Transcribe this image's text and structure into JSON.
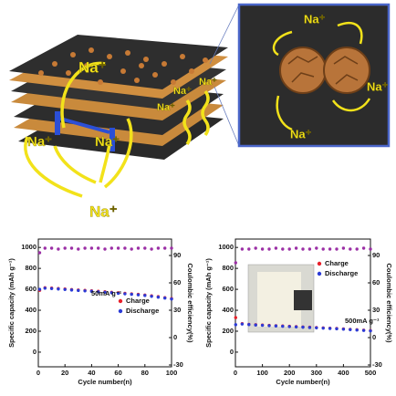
{
  "illustration": {
    "labels": [
      "Na⁺",
      "Na⁺",
      "Na⁺",
      "Na⁺",
      "Na⁺",
      "Na⁺",
      "Na⁺",
      "Na⁺",
      "Na⁺",
      "Na⁺"
    ]
  },
  "chart_data": [
    {
      "type": "scatter",
      "xlabel": "Cycle number(n)",
      "ylabel": "Specific capacity (mAh g⁻¹)",
      "y2label": "Coulombic efficiency(%)",
      "annotation": "50mA g⁻¹",
      "xlim": [
        0,
        100
      ],
      "xticks": [
        0,
        20,
        40,
        60,
        80,
        100
      ],
      "ylim": [
        -140,
        1080
      ],
      "yticks": [
        0,
        200,
        400,
        600,
        800,
        1000
      ],
      "y2lim": [
        -32,
        108
      ],
      "y2ticks": [
        -30,
        0,
        30,
        60,
        90
      ],
      "legend": "center right",
      "x": [
        1,
        5,
        10,
        15,
        20,
        25,
        30,
        35,
        40,
        45,
        50,
        55,
        60,
        65,
        70,
        75,
        80,
        85,
        90,
        95,
        100
      ],
      "series": [
        {
          "name": "Charge",
          "color": "#e8202a",
          "values": [
            590,
            615,
            612,
            608,
            603,
            598,
            594,
            590,
            586,
            581,
            577,
            572,
            567,
            562,
            557,
            552,
            546,
            538,
            530,
            521,
            512
          ]
        },
        {
          "name": "Discharge",
          "color": "#2b3bd6",
          "values": [
            600,
            610,
            607,
            603,
            598,
            593,
            589,
            585,
            581,
            576,
            572,
            567,
            562,
            557,
            552,
            547,
            541,
            533,
            525,
            516,
            507
          ]
        },
        {
          "color": "#9b2fa5",
          "axis": "y2",
          "values": [
            93,
            98,
            98,
            97,
            98,
            98,
            97,
            98,
            98,
            98,
            97,
            98,
            98,
            98,
            97,
            98,
            98,
            97,
            98,
            98,
            98
          ]
        }
      ]
    },
    {
      "type": "scatter",
      "xlabel": "Cycle number(n)",
      "ylabel": "Specific capacity (mAh g⁻¹)",
      "y2label": "Coulombic efficiency(%)",
      "annotation": "500mA g⁻¹",
      "xlim": [
        0,
        500
      ],
      "xticks": [
        0,
        100,
        200,
        300,
        400,
        500
      ],
      "ylim": [
        -140,
        1080
      ],
      "yticks": [
        0,
        200,
        400,
        600,
        800,
        1000
      ],
      "y2lim": [
        -32,
        108
      ],
      "y2ticks": [
        -30,
        0,
        30,
        60,
        90
      ],
      "legend": "upper right",
      "x": [
        1,
        25,
        50,
        75,
        100,
        125,
        150,
        175,
        200,
        225,
        250,
        275,
        300,
        325,
        350,
        375,
        400,
        425,
        450,
        475,
        500
      ],
      "series": [
        {
          "name": "Charge",
          "color": "#e8202a",
          "values": [
            330,
            272,
            266,
            262,
            259,
            256,
            253,
            250,
            247,
            244,
            241,
            238,
            235,
            232,
            229,
            226,
            222,
            218,
            214,
            210,
            206
          ]
        },
        {
          "name": "Discharge",
          "color": "#2b3bd6",
          "values": [
            262,
            268,
            263,
            259,
            256,
            253,
            250,
            247,
            244,
            241,
            238,
            235,
            232,
            229,
            226,
            223,
            219,
            215,
            211,
            207,
            203
          ]
        },
        {
          "color": "#9b2fa5",
          "axis": "y2",
          "values": [
            82,
            97,
            97,
            98,
            97,
            97,
            98,
            97,
            97,
            98,
            97,
            97,
            98,
            97,
            97,
            97,
            98,
            97,
            97,
            98,
            97
          ]
        }
      ]
    }
  ]
}
